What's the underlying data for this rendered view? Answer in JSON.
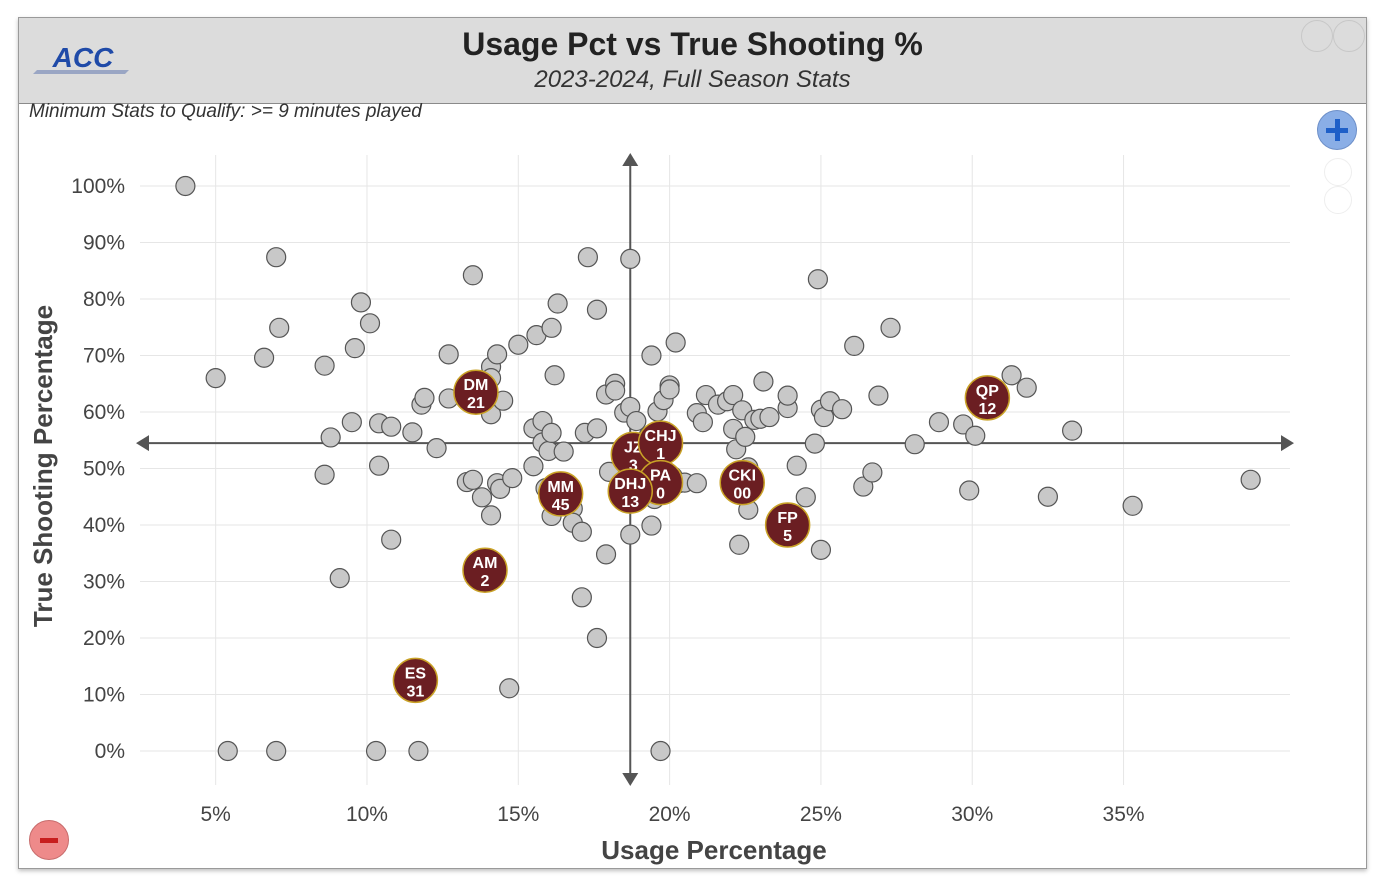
{
  "header": {
    "title": "Usage Pct vs True Shooting %",
    "subtitle": "2023-2024, Full Season Stats",
    "note": "Minimum Stats to Qualify: >= 9 minutes played",
    "logo_text": "ACC"
  },
  "controls": {
    "zoom_in": "zoom-in-icon",
    "zoom_out": "zoom-out-icon"
  },
  "colors": {
    "point_fill": "#c8c8c8",
    "point_stroke": "#555555",
    "highlight_fill": "#6b1e22",
    "highlight_stroke": "#c9a227",
    "logo_blue": "#1f4aa8"
  },
  "chart_data": {
    "type": "scatter",
    "xlabel": "Usage Percentage",
    "ylabel": "True Shooting Percentage",
    "xlim": [
      2.5,
      40.5
    ],
    "ylim": [
      -5,
      105
    ],
    "x_ticks": [
      5,
      10,
      15,
      20,
      25,
      30,
      35
    ],
    "x_tick_labels": [
      "5%",
      "10%",
      "15%",
      "20%",
      "25%",
      "30%",
      "35%"
    ],
    "y_ticks": [
      0,
      10,
      20,
      30,
      40,
      50,
      60,
      70,
      80,
      90,
      100
    ],
    "y_tick_labels": [
      "0%",
      "10%",
      "20%",
      "30%",
      "40%",
      "50%",
      "60%",
      "70%",
      "80%",
      "90%",
      "100%"
    ],
    "grid": true,
    "crosshair": {
      "x": 18.7,
      "y": 54.5
    },
    "points": [
      [
        4.0,
        100
      ],
      [
        5.0,
        66
      ],
      [
        5.4,
        0
      ],
      [
        6.6,
        69.6
      ],
      [
        7.0,
        87.4
      ],
      [
        7.0,
        0
      ],
      [
        7.1,
        74.9
      ],
      [
        8.6,
        68.2
      ],
      [
        8.6,
        48.9
      ],
      [
        8.8,
        55.5
      ],
      [
        9.1,
        30.6
      ],
      [
        9.5,
        58.2
      ],
      [
        9.6,
        71.3
      ],
      [
        9.8,
        79.4
      ],
      [
        10.1,
        75.7
      ],
      [
        10.3,
        0
      ],
      [
        10.4,
        58
      ],
      [
        10.4,
        50.5
      ],
      [
        10.8,
        57.4
      ],
      [
        10.8,
        37.4
      ],
      [
        11.5,
        56.4
      ],
      [
        11.7,
        0
      ],
      [
        11.8,
        61.3
      ],
      [
        11.9,
        62.5
      ],
      [
        12.3,
        53.6
      ],
      [
        12.7,
        62.4
      ],
      [
        12.7,
        70.2
      ],
      [
        13.3,
        47.6
      ],
      [
        13.5,
        48
      ],
      [
        13.5,
        84.2
      ],
      [
        13.8,
        44.9
      ],
      [
        14.1,
        59.6
      ],
      [
        14.1,
        68
      ],
      [
        14.1,
        66
      ],
      [
        14.1,
        41.7
      ],
      [
        14.3,
        70.2
      ],
      [
        14.3,
        47.4
      ],
      [
        14.4,
        46.4
      ],
      [
        14.5,
        62
      ],
      [
        14.7,
        11.1
      ],
      [
        14.8,
        48.3
      ],
      [
        15.0,
        71.9
      ],
      [
        15.5,
        50.4
      ],
      [
        15.5,
        57.1
      ],
      [
        15.6,
        73.6
      ],
      [
        15.8,
        54.6
      ],
      [
        15.8,
        58.4
      ],
      [
        15.9,
        46.5
      ],
      [
        16.0,
        53.1
      ],
      [
        16.1,
        74.9
      ],
      [
        16.1,
        56.3
      ],
      [
        16.1,
        41.6
      ],
      [
        16.2,
        66.5
      ],
      [
        16.3,
        79.2
      ],
      [
        16.4,
        46.8
      ],
      [
        16.5,
        53
      ],
      [
        16.8,
        42.9
      ],
      [
        16.8,
        40.4
      ],
      [
        17.1,
        38.8
      ],
      [
        17.1,
        27.2
      ],
      [
        17.2,
        56.3
      ],
      [
        17.3,
        87.4
      ],
      [
        17.6,
        78.1
      ],
      [
        17.6,
        57.1
      ],
      [
        17.6,
        20
      ],
      [
        17.9,
        34.8
      ],
      [
        17.9,
        63.1
      ],
      [
        18.0,
        49.4
      ],
      [
        18.2,
        65
      ],
      [
        18.2,
        63.8
      ],
      [
        18.5,
        59.9
      ],
      [
        18.7,
        87.1
      ],
      [
        18.7,
        60.9
      ],
      [
        18.7,
        38.3
      ],
      [
        18.9,
        58.4
      ],
      [
        19.3,
        55.7
      ],
      [
        19.4,
        70
      ],
      [
        19.4,
        39.9
      ],
      [
        19.5,
        44.6
      ],
      [
        19.6,
        60.1
      ],
      [
        19.7,
        0
      ],
      [
        19.8,
        62.1
      ],
      [
        20.0,
        64.7
      ],
      [
        20.0,
        64
      ],
      [
        20.1,
        48.6
      ],
      [
        20.2,
        72.3
      ],
      [
        20.3,
        47.4
      ],
      [
        20.5,
        47.5
      ],
      [
        20.9,
        59.8
      ],
      [
        20.9,
        47.4
      ],
      [
        21.1,
        58.2
      ],
      [
        21.2,
        63
      ],
      [
        21.6,
        61.3
      ],
      [
        21.9,
        61.9
      ],
      [
        22.1,
        63
      ],
      [
        22.1,
        57
      ],
      [
        22.2,
        53.4
      ],
      [
        22.3,
        36.5
      ],
      [
        22.4,
        60.3
      ],
      [
        22.5,
        55.6
      ],
      [
        22.6,
        50.2
      ],
      [
        22.6,
        42.7
      ],
      [
        22.8,
        58.6
      ],
      [
        23.0,
        58.8
      ],
      [
        23.1,
        65.4
      ],
      [
        23.3,
        59.1
      ],
      [
        23.9,
        60.7
      ],
      [
        23.9,
        62.9
      ],
      [
        24.2,
        50.5
      ],
      [
        24.5,
        44.9
      ],
      [
        24.8,
        54.4
      ],
      [
        24.9,
        83.5
      ],
      [
        25.0,
        60.4
      ],
      [
        25.0,
        35.6
      ],
      [
        25.1,
        59.1
      ],
      [
        25.3,
        61.9
      ],
      [
        25.7,
        60.5
      ],
      [
        26.1,
        71.7
      ],
      [
        26.4,
        46.8
      ],
      [
        26.7,
        49.3
      ],
      [
        26.9,
        62.9
      ],
      [
        27.3,
        74.9
      ],
      [
        28.1,
        54.3
      ],
      [
        28.9,
        58.2
      ],
      [
        29.7,
        57.8
      ],
      [
        29.9,
        46.1
      ],
      [
        30.1,
        55.8
      ],
      [
        31.3,
        66.5
      ],
      [
        31.8,
        64.3
      ],
      [
        32.5,
        45
      ],
      [
        33.3,
        56.7
      ],
      [
        35.3,
        43.4
      ],
      [
        39.2,
        48
      ]
    ],
    "highlighted": [
      {
        "label": "DM",
        "number": "21",
        "x": 13.6,
        "y": 63.5
      },
      {
        "label": "QP",
        "number": "12",
        "x": 30.5,
        "y": 62.5
      },
      {
        "label": "JZ",
        "number": "3",
        "x": 18.8,
        "y": 52.5
      },
      {
        "label": "CHJ",
        "number": "1",
        "x": 19.7,
        "y": 54.5
      },
      {
        "label": "PA",
        "number": "0",
        "x": 19.7,
        "y": 47.5
      },
      {
        "label": "DHJ",
        "number": "13",
        "x": 18.7,
        "y": 46
      },
      {
        "label": "CKI",
        "number": "00",
        "x": 22.4,
        "y": 47.5
      },
      {
        "label": "MM",
        "number": "45",
        "x": 16.4,
        "y": 45.5
      },
      {
        "label": "FP",
        "number": "5",
        "x": 23.9,
        "y": 40
      },
      {
        "label": "AM",
        "number": "2",
        "x": 13.9,
        "y": 32
      },
      {
        "label": "ES",
        "number": "31",
        "x": 11.6,
        "y": 12.5
      }
    ]
  }
}
